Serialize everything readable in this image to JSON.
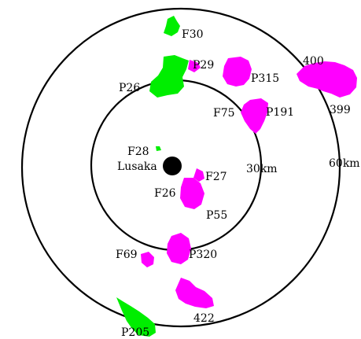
{
  "colors": {
    "ring": "#000000",
    "city": "#000000",
    "forest_reserve": "#00ee00",
    "plantation": "#ff00ff",
    "background": "#ffffff"
  },
  "city": {
    "name": "Lusaka"
  },
  "rings": [
    {
      "label": "30km"
    },
    {
      "label": "60km"
    }
  ],
  "areas": [
    {
      "label": "F30",
      "type": "forest_reserve"
    },
    {
      "label": "P29",
      "type": "plantation"
    },
    {
      "label": "P26",
      "type": "forest_reserve"
    },
    {
      "label": "P315",
      "type": "plantation"
    },
    {
      "label": "400",
      "type": "plantation"
    },
    {
      "label": "399",
      "type": "plantation"
    },
    {
      "label": "F75",
      "type": "plantation"
    },
    {
      "label": "P191",
      "type": "plantation"
    },
    {
      "label": "F28",
      "type": "forest_reserve"
    },
    {
      "label": "F27",
      "type": "plantation"
    },
    {
      "label": "F26",
      "type": "plantation"
    },
    {
      "label": "P55",
      "type": "plantation"
    },
    {
      "label": "F69",
      "type": "plantation"
    },
    {
      "label": "P320",
      "type": "plantation"
    },
    {
      "label": "422",
      "type": "plantation"
    },
    {
      "label": "P205",
      "type": "forest_reserve"
    }
  ]
}
